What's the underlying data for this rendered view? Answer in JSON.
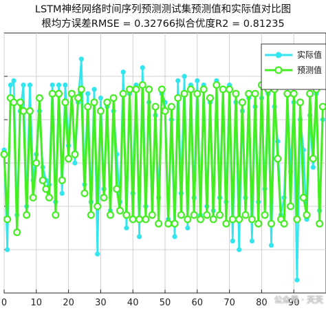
{
  "chart_data": {
    "type": "line",
    "title_line1": "LSTM神经网络时间序列预测测试集预测值和实际值对比图",
    "title_line2": "根均方误差RMSE = 0.32766拟合优度R2 = 0.81235",
    "xlim": [
      0,
      100
    ],
    "ylim": [
      -3,
      3
    ],
    "x_ticks": [
      "0",
      "10",
      "20",
      "30",
      "40",
      "50",
      "60",
      "70",
      "80",
      "90"
    ],
    "grid": true,
    "legend_position": "top-right",
    "series": [
      {
        "name": "实际值",
        "color": "#33e6ee",
        "marker": "filled-circle",
        "values": [
          0.3,
          -2.0,
          1.8,
          1.9,
          -1.2,
          1.2,
          1.8,
          -1.0,
          1.8,
          -0.4,
          0.2,
          1.2,
          -0.1,
          -0.4,
          -0.5,
          1.8,
          -0.9,
          1.8,
          -0.7,
          1.8,
          0.4,
          1.6,
          0.0,
          1.4,
          2.4,
          -0.5,
          1.6,
          -0.9,
          1.7,
          -2.1,
          1.5,
          -0.6,
          1.3,
          -1.1,
          1.2,
          0.2,
          -0.9,
          2.1,
          -1.5,
          1.6,
          -0.7,
          1.8,
          -1.7,
          2.2,
          -1.0,
          1.4,
          -1.2,
          1.1,
          -0.8,
          1.6,
          1.4,
          -1.3,
          1.0,
          -1.7,
          1.9,
          -0.7,
          2.0,
          -1.5,
          1.8,
          -0.8,
          1.9,
          -1.2,
          1.8,
          -1.0,
          1.4,
          -1.1,
          1.9,
          -0.8,
          1.7,
          -0.9,
          1.8,
          -1.8,
          1.4,
          -2.0,
          1.2,
          -0.8,
          1.5,
          -1.8,
          1.3,
          -0.9,
          1.5,
          -0.6,
          1.6,
          -1.9,
          1.3,
          0.5,
          -1.2,
          -0.8,
          1.6,
          -0.2,
          1.4,
          -2.7,
          1.0,
          0.3,
          -1.3,
          1.1,
          -0.1,
          1.6,
          -1.1,
          1.0
        ]
      },
      {
        "name": "预测值",
        "color": "#44ee22",
        "marker": "open-circle",
        "values": [
          0.2,
          -1.3,
          1.5,
          1.4,
          -1.6,
          1.4,
          1.2,
          -1.2,
          1.2,
          -0.8,
          0.0,
          1.5,
          -0.4,
          -0.6,
          -0.8,
          1.6,
          -1.2,
          1.6,
          -0.4,
          1.4,
          0.1,
          1.6,
          0.2,
          1.5,
          1.7,
          -0.7,
          1.3,
          -1.2,
          1.4,
          -1.0,
          1.2,
          -0.8,
          1.4,
          -1.2,
          1.5,
          -0.6,
          -1.1,
          1.6,
          -1.2,
          1.7,
          -1.3,
          1.7,
          -1.3,
          1.8,
          -1.3,
          1.7,
          -1.2,
          1.3,
          -1.4,
          1.7,
          1.2,
          -1.4,
          1.3,
          -1.4,
          1.5,
          -1.2,
          1.6,
          -1.3,
          1.7,
          -1.2,
          1.6,
          -1.3,
          1.7,
          -1.2,
          1.5,
          -1.3,
          1.8,
          -1.2,
          1.7,
          -1.4,
          1.7,
          -1.3,
          1.6,
          -1.3,
          1.4,
          -1.2,
          1.6,
          -1.3,
          1.6,
          -1.4,
          1.8,
          -1.2,
          1.7,
          -1.4,
          1.7,
          0.1,
          -1.3,
          -1.4,
          1.6,
          -1.0,
          1.6,
          -1.3,
          1.4,
          -0.8,
          -1.2,
          1.6,
          0.1,
          1.7,
          -1.4,
          1.3
        ]
      }
    ]
  },
  "watermark": "公众号 · 天天"
}
